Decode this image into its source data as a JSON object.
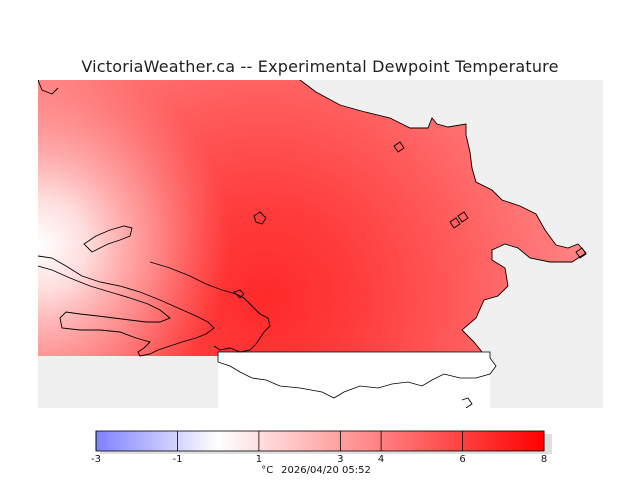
{
  "title": "VictoriaWeather.ca -- Experimental Dewpoint Temperature",
  "colorbar": {
    "ticks": [
      "-3",
      "-1",
      "1",
      "3",
      "4",
      "6",
      "8"
    ],
    "tick_values": [
      -3,
      -1,
      1,
      3,
      4,
      6,
      8
    ],
    "min": -3,
    "max": 8,
    "unit": "°C",
    "timestamp": "2026/04/20 05:52",
    "color_low": "#8080ff",
    "color_mid": "#ffffff",
    "color_high": "#ff0000"
  },
  "colors": {
    "land_background": "#f0f0f0",
    "coastline": "#000000",
    "no_data": "#ffffff"
  }
}
